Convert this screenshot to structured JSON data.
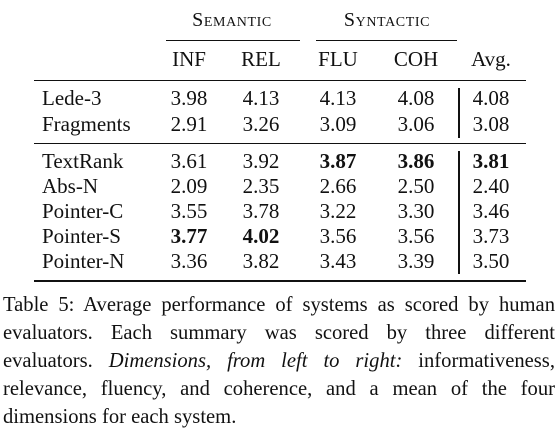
{
  "table": {
    "group_headers": {
      "semantic": "Semantic",
      "syntactic": "Syntactic"
    },
    "columns": [
      "INF",
      "REL",
      "FLU",
      "COH",
      "Avg."
    ],
    "section1": [
      {
        "name": "Lede-3",
        "values": [
          "3.98",
          "4.13",
          "4.13",
          "4.08",
          "4.08"
        ],
        "bold": [
          false,
          false,
          false,
          false,
          false
        ]
      },
      {
        "name": "Fragments",
        "values": [
          "2.91",
          "3.26",
          "3.09",
          "3.06",
          "3.08"
        ],
        "bold": [
          false,
          false,
          false,
          false,
          false
        ]
      }
    ],
    "section2": [
      {
        "name": "TextRank",
        "values": [
          "3.61",
          "3.92",
          "3.87",
          "3.86",
          "3.81"
        ],
        "bold": [
          false,
          false,
          true,
          true,
          true
        ]
      },
      {
        "name": "Abs-N",
        "values": [
          "2.09",
          "2.35",
          "2.66",
          "2.50",
          "2.40"
        ],
        "bold": [
          false,
          false,
          false,
          false,
          false
        ]
      },
      {
        "name": "Pointer-C",
        "values": [
          "3.55",
          "3.78",
          "3.22",
          "3.30",
          "3.46"
        ],
        "bold": [
          false,
          false,
          false,
          false,
          false
        ]
      },
      {
        "name": "Pointer-S",
        "values": [
          "3.77",
          "4.02",
          "3.56",
          "3.56",
          "3.73"
        ],
        "bold": [
          true,
          true,
          false,
          false,
          false
        ]
      },
      {
        "name": "Pointer-N",
        "values": [
          "3.36",
          "3.82",
          "3.43",
          "3.39",
          "3.50"
        ],
        "bold": [
          false,
          false,
          false,
          false,
          false
        ]
      }
    ]
  },
  "caption": {
    "lead": "Table 5: Average performance of systems as scored by human evaluators. Each summary was scored by three different evaluators. ",
    "emphasis": "Dimensions, from left to right:",
    "tail": " informativeness, relevance, fluency, and coherence, and a mean of the four dimensions for each system."
  }
}
